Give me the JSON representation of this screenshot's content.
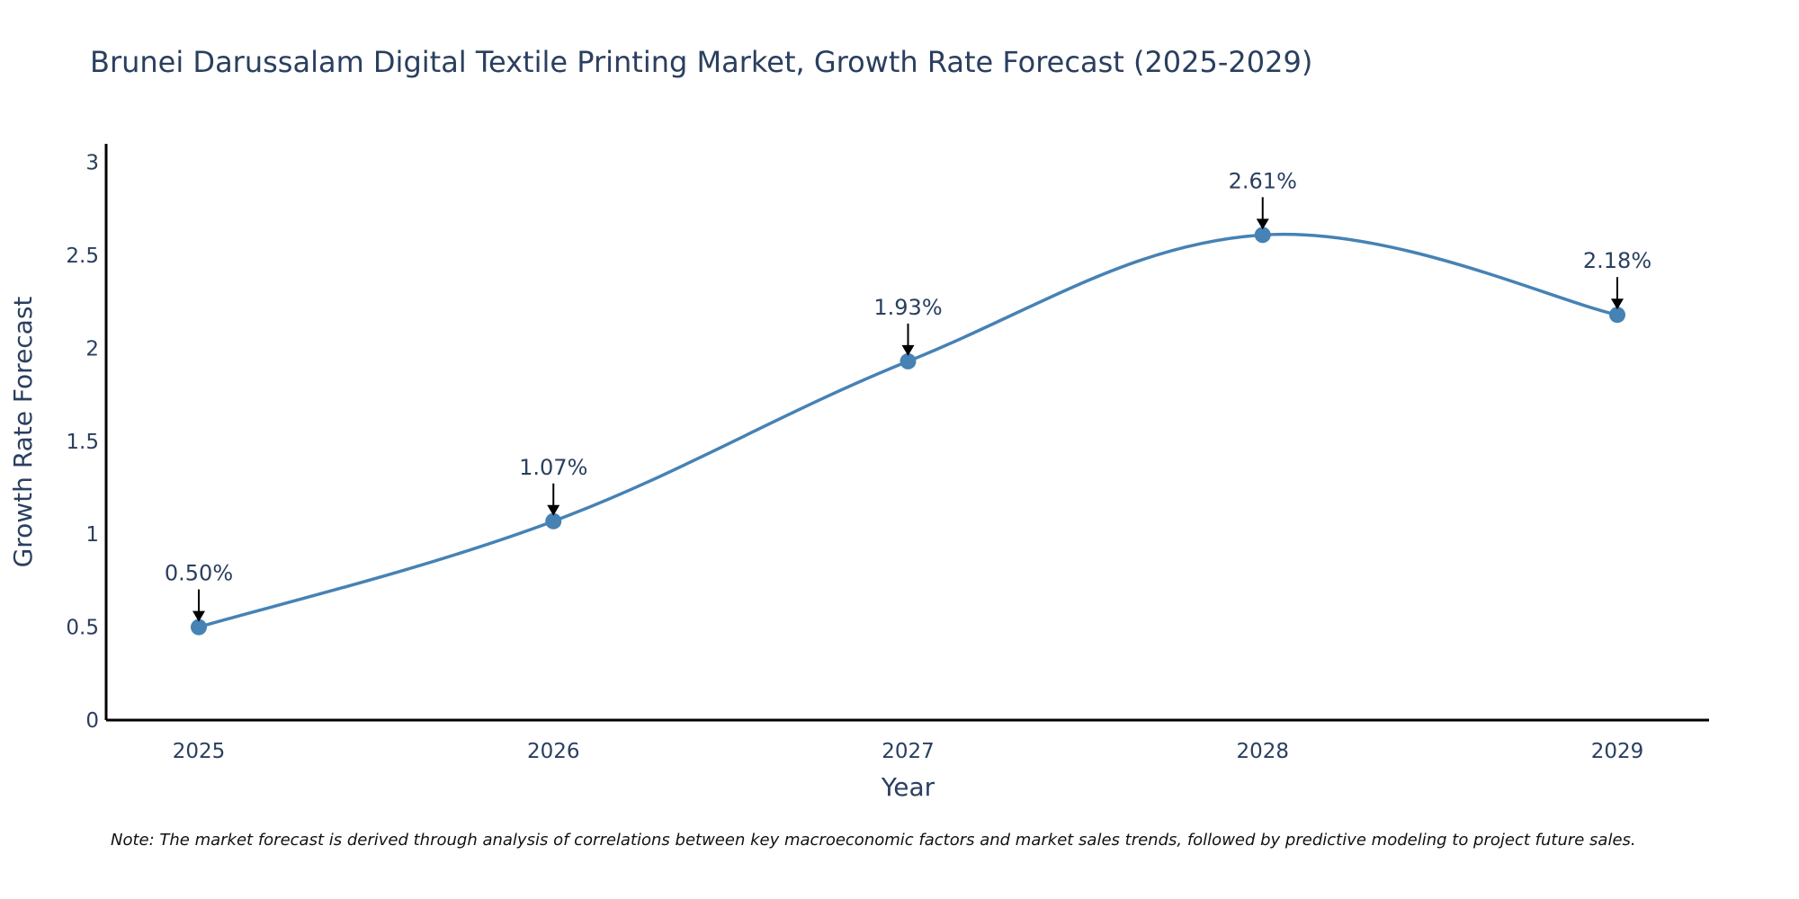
{
  "chart_data": {
    "type": "line",
    "title": "Brunei Darussalam Digital Textile Printing Market, Growth Rate Forecast (2025-2029)",
    "xlabel": "Year",
    "ylabel": "Growth Rate Forecast",
    "categories": [
      "2025",
      "2026",
      "2027",
      "2028",
      "2029"
    ],
    "series": [
      {
        "name": "Growth Rate Forecast",
        "values": [
          0.5,
          1.07,
          1.93,
          2.61,
          2.18
        ]
      }
    ],
    "data_labels": [
      "0.50%",
      "1.07%",
      "1.93%",
      "2.61%",
      "2.18%"
    ],
    "ylim": [
      0,
      3.1
    ],
    "yticks": [
      0,
      0.5,
      1,
      1.5,
      2,
      2.5,
      3
    ],
    "ytick_labels": [
      "0",
      "0.5",
      "1",
      "1.5",
      "2",
      "2.5",
      "3"
    ],
    "grid": false,
    "colors": {
      "line": "#4682b4",
      "axis": "#000000",
      "text": "#2a3f5f"
    },
    "note": "Note: The market forecast is derived through analysis of correlations between key macroeconomic factors and market sales trends, followed by predictive modeling to project future sales."
  }
}
